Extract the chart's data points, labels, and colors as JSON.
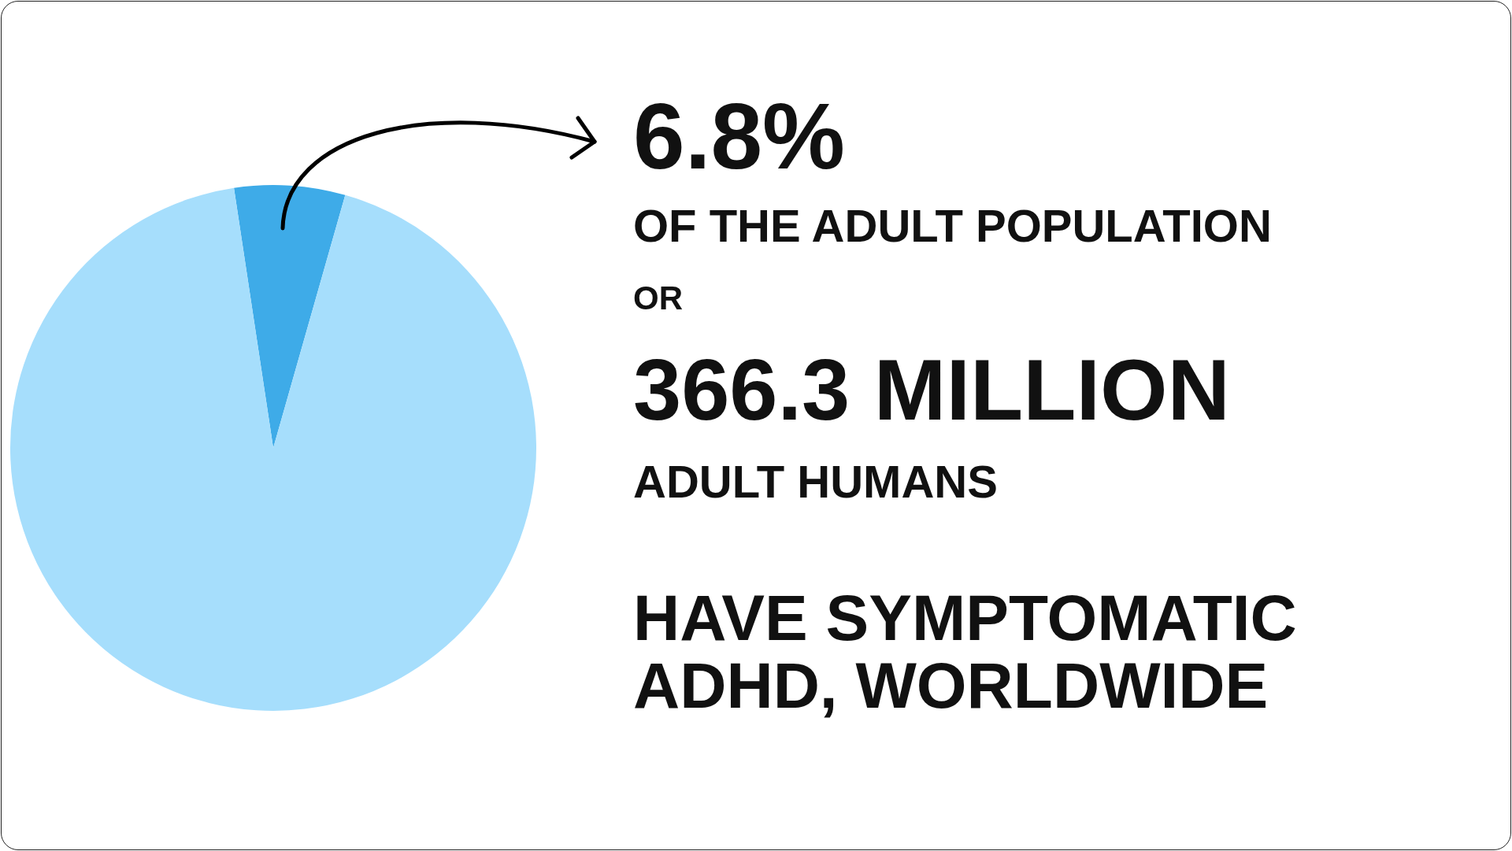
{
  "chart_data": {
    "type": "pie",
    "categories": [
      null,
      null
    ],
    "values": [
      6.8,
      93.2
    ],
    "colors": [
      "#3eabe8",
      "#a6defc"
    ],
    "annotations": [
      "6.8%",
      "OF THE ADULT POPULATION",
      "OR",
      "366.3 MILLION",
      "ADULT HUMANS",
      "HAVE SYMPTOMATIC ADHD, WORLDWIDE"
    ],
    "legend": false
  }
}
